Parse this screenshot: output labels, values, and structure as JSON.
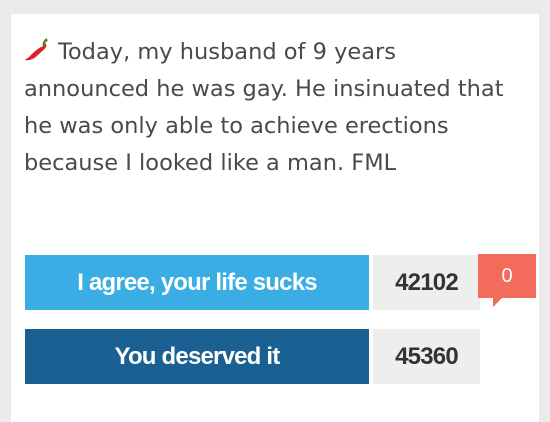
{
  "post": {
    "icon": "chili-pepper-icon",
    "text": "Today, my husband of 9 years announced he was gay. He insinuated that he was only able to achieve erections because I looked like a man. FML"
  },
  "votes": {
    "agree_label": "I agree, your life sucks",
    "agree_count": "42102",
    "deserved_label": "You deserved it",
    "deserved_count": "45360"
  },
  "comments": {
    "count": "0"
  },
  "colors": {
    "agree": "#3aaee4",
    "deserved": "#1b6093",
    "comment_bubble": "#f26b5b",
    "chili": "#d8232a"
  }
}
